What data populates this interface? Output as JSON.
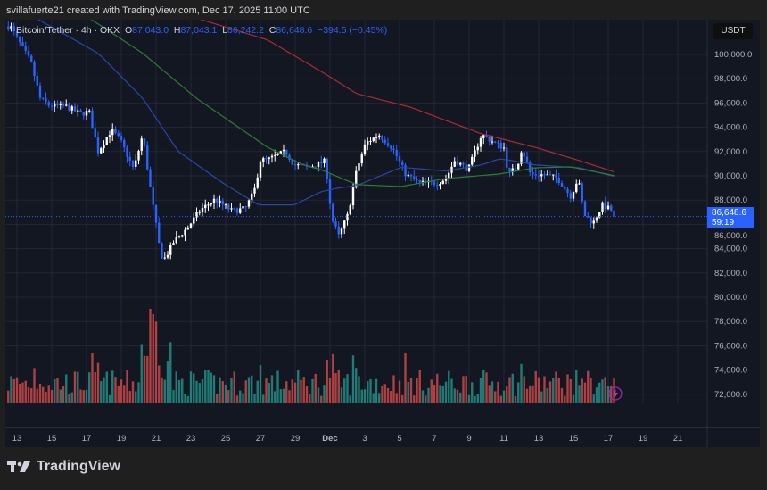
{
  "header": {
    "attribution": "svillafuerte21 created with TradingView.com, Dec 17, 2025 11:00 UTC"
  },
  "legend": {
    "symbol": "Bitcoin/Tether · 4h · OKX",
    "o_label": "O",
    "o": "87,043.0",
    "h_label": "H",
    "h": "87,043.1",
    "l_label": "L",
    "l": "86,242.2",
    "c_label": "C",
    "c": "86,648.6",
    "change": "−394.5 (−0.45%)"
  },
  "price_axis": {
    "currency": "USDT",
    "last_price": "86,648.6",
    "countdown": "59:19"
  },
  "logo": {
    "text": "TradingView"
  },
  "colors": {
    "up": "#ffffff",
    "down": "#2962ff",
    "ma_fast": "#2a47a8",
    "ma_mid": "#2e7d32",
    "ma_slow": "#b22833",
    "vol_up": "#26a69a",
    "vol_down": "#ef5350"
  },
  "chart_data": {
    "type": "candlestick",
    "title": "Bitcoin/Tether · 4h · OKX",
    "ylim": [
      71000,
      102600
    ],
    "yticks": [
      "100,000.0",
      "98,000.0",
      "96,000.0",
      "94,000.0",
      "92,000.0",
      "90,000.0",
      "88,000.0",
      "86,000.0",
      "84,000.0",
      "82,000.0",
      "80,000.0",
      "78,000.0",
      "76,000.0",
      "74,000.0",
      "72,000.0"
    ],
    "ytick_values": [
      100000,
      98000,
      96000,
      94000,
      92000,
      90000,
      88000,
      86000,
      84000,
      82000,
      80000,
      78000,
      76000,
      74000,
      72000
    ],
    "xticks": [
      "13",
      "15",
      "17",
      "19",
      "21",
      "23",
      "25",
      "27",
      "29",
      "Dec",
      "3",
      "5",
      "7",
      "9",
      "11",
      "13",
      "15",
      "17",
      "19",
      "21"
    ],
    "x_unit": "days since Nov 13",
    "price_path": [
      [
        -0.36,
        102300
      ],
      [
        0.05,
        101200
      ],
      [
        0.82,
        99300
      ],
      [
        1.33,
        96400
      ],
      [
        1.85,
        95800
      ],
      [
        2.87,
        95700
      ],
      [
        3.64,
        95100
      ],
      [
        4.15,
        95300
      ],
      [
        4.67,
        92000
      ],
      [
        5.44,
        93800
      ],
      [
        5.95,
        92900
      ],
      [
        6.72,
        90500
      ],
      [
        7.23,
        93400
      ],
      [
        7.74,
        88300
      ],
      [
        8.26,
        83500
      ],
      [
        8.51,
        83200
      ],
      [
        9.03,
        84600
      ],
      [
        9.79,
        85700
      ],
      [
        10.56,
        87200
      ],
      [
        11.33,
        88000
      ],
      [
        11.85,
        87600
      ],
      [
        12.36,
        87100
      ],
      [
        13.13,
        87300
      ],
      [
        13.64,
        88700
      ],
      [
        14.0,
        91300
      ],
      [
        14.41,
        91300
      ],
      [
        15.44,
        92000
      ],
      [
        15.95,
        90900
      ],
      [
        16.72,
        90700
      ],
      [
        17.74,
        91200
      ],
      [
        18.1,
        86500
      ],
      [
        18.51,
        85000
      ],
      [
        19.03,
        86800
      ],
      [
        19.54,
        90500
      ],
      [
        20.05,
        92700
      ],
      [
        20.82,
        93400
      ],
      [
        21.59,
        92300
      ],
      [
        22.36,
        90100
      ],
      [
        23.13,
        89400
      ],
      [
        24.15,
        89400
      ],
      [
        24.67,
        89800
      ],
      [
        25.18,
        91300
      ],
      [
        25.95,
        90500
      ],
      [
        26.72,
        93400
      ],
      [
        27.49,
        92700
      ],
      [
        28.0,
        92300
      ],
      [
        28.26,
        90100
      ],
      [
        28.77,
        90800
      ],
      [
        29.03,
        92300
      ],
      [
        29.54,
        90100
      ],
      [
        30.31,
        90100
      ],
      [
        31.08,
        89800
      ],
      [
        31.85,
        88300
      ],
      [
        32.26,
        89800
      ],
      [
        32.62,
        86800
      ],
      [
        33.13,
        86100
      ],
      [
        33.64,
        87600
      ],
      [
        34.15,
        87200
      ],
      [
        34.41,
        86649
      ]
    ],
    "ma_fast": [
      [
        1.08,
        103000
      ],
      [
        4.67,
        100100
      ],
      [
        7.23,
        96400
      ],
      [
        9.28,
        92000
      ],
      [
        11.85,
        89400
      ],
      [
        13.9,
        87600
      ],
      [
        15.95,
        87600
      ],
      [
        17.49,
        88700
      ],
      [
        18.51,
        89000
      ],
      [
        19.54,
        89200
      ],
      [
        22.1,
        90700
      ],
      [
        24.67,
        90400
      ],
      [
        26.72,
        90900
      ],
      [
        27.74,
        91400
      ],
      [
        28.51,
        91250
      ],
      [
        29.79,
        90900
      ],
      [
        32.36,
        90660
      ],
      [
        34.41,
        89930
      ]
    ],
    "ma_mid": [
      [
        4.15,
        103000
      ],
      [
        7.23,
        100100
      ],
      [
        10.31,
        96400
      ],
      [
        14.41,
        92350
      ],
      [
        16.46,
        90900
      ],
      [
        17.49,
        90500
      ],
      [
        19.54,
        89270
      ],
      [
        22.1,
        89120
      ],
      [
        24.67,
        89780
      ],
      [
        27.74,
        90150
      ],
      [
        29.79,
        90660
      ],
      [
        31.85,
        90740
      ],
      [
        34.41,
        90000
      ]
    ],
    "ma_slow": [
      [
        10.31,
        103000
      ],
      [
        14.41,
        101200
      ],
      [
        17.49,
        98600
      ],
      [
        19.54,
        96770
      ],
      [
        22.62,
        95660
      ],
      [
        26.72,
        93460
      ],
      [
        29.79,
        92350
      ],
      [
        32.36,
        91250
      ],
      [
        34.41,
        90290
      ]
    ]
  }
}
